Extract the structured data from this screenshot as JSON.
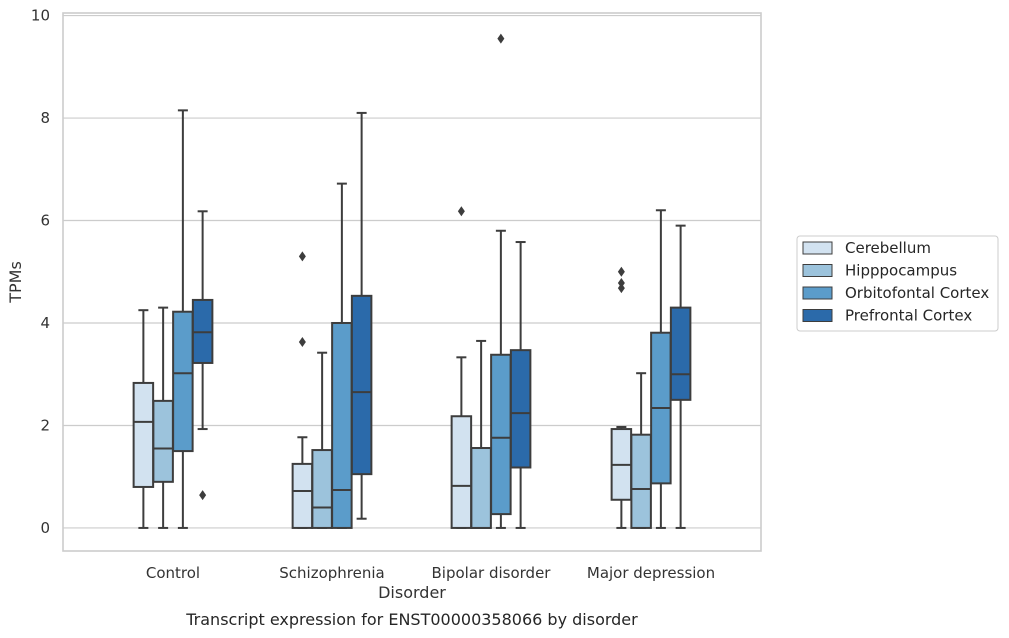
{
  "chart_data": {
    "type": "box",
    "caption": "Transcript expression for ENST00000358066 by disorder",
    "xlabel": "Disorder",
    "ylabel": "TPMs",
    "ylim": [
      -0.45,
      10.05
    ],
    "yticks": [
      0,
      2,
      4,
      6,
      8,
      10
    ],
    "grid": "horizontal",
    "legend_position": "right",
    "categories": [
      "Control",
      "Schizophrenia",
      "Bipolar disorder",
      "Major depression"
    ],
    "series": [
      {
        "name": "Cerebellum",
        "color": "#d2e2f0",
        "boxes": [
          {
            "whislo": 0,
            "q1": 0.8,
            "med": 2.07,
            "q3": 2.83,
            "whishi": 4.25,
            "fliers": []
          },
          {
            "whislo": 0,
            "q1": 0,
            "med": 0.72,
            "q3": 1.25,
            "whishi": 1.77,
            "fliers": [
              3.63,
              5.3
            ]
          },
          {
            "whislo": 0,
            "q1": 0,
            "med": 0.82,
            "q3": 2.18,
            "whishi": 3.33,
            "fliers": [
              6.18
            ]
          },
          {
            "whislo": 0,
            "q1": 0.55,
            "med": 1.23,
            "q3": 1.93,
            "whishi": 1.97,
            "fliers": [
              4.68,
              4.78,
              5.0
            ]
          }
        ]
      },
      {
        "name": "Hipppocampus",
        "color": "#9cc3dc",
        "boxes": [
          {
            "whislo": 0,
            "q1": 0.9,
            "med": 1.55,
            "q3": 2.48,
            "whishi": 4.3,
            "fliers": []
          },
          {
            "whislo": 0,
            "q1": 0,
            "med": 0.4,
            "q3": 1.52,
            "whishi": 3.42,
            "fliers": []
          },
          {
            "whislo": 0,
            "q1": 0,
            "med": 0,
            "q3": 1.56,
            "whishi": 3.65,
            "fliers": []
          },
          {
            "whislo": 0,
            "q1": 0,
            "med": 0.76,
            "q3": 1.82,
            "whishi": 3.02,
            "fliers": []
          }
        ]
      },
      {
        "name": "Orbitofontal Cortex",
        "color": "#5b9cca",
        "boxes": [
          {
            "whislo": 0,
            "q1": 1.5,
            "med": 3.02,
            "q3": 4.22,
            "whishi": 8.15,
            "fliers": []
          },
          {
            "whislo": 0,
            "q1": 0,
            "med": 0.74,
            "q3": 4.0,
            "whishi": 6.72,
            "fliers": []
          },
          {
            "whislo": 0,
            "q1": 0.27,
            "med": 1.76,
            "q3": 3.38,
            "whishi": 5.8,
            "fliers": [
              9.55
            ]
          },
          {
            "whislo": 0,
            "q1": 0.87,
            "med": 2.34,
            "q3": 3.81,
            "whishi": 6.2,
            "fliers": []
          }
        ]
      },
      {
        "name": "Prefrontal Cortex",
        "color": "#2b6aaa",
        "boxes": [
          {
            "whislo": 1.93,
            "q1": 3.22,
            "med": 3.82,
            "q3": 4.45,
            "whishi": 6.18,
            "fliers": [
              0.64
            ]
          },
          {
            "whislo": 0.18,
            "q1": 1.05,
            "med": 2.65,
            "q3": 4.53,
            "whishi": 8.1,
            "fliers": []
          },
          {
            "whislo": 0,
            "q1": 1.18,
            "med": 2.24,
            "q3": 3.47,
            "whishi": 5.58,
            "fliers": []
          },
          {
            "whislo": 0,
            "q1": 2.5,
            "med": 3.0,
            "q3": 4.3,
            "whishi": 5.9,
            "fliers": []
          }
        ]
      }
    ]
  }
}
